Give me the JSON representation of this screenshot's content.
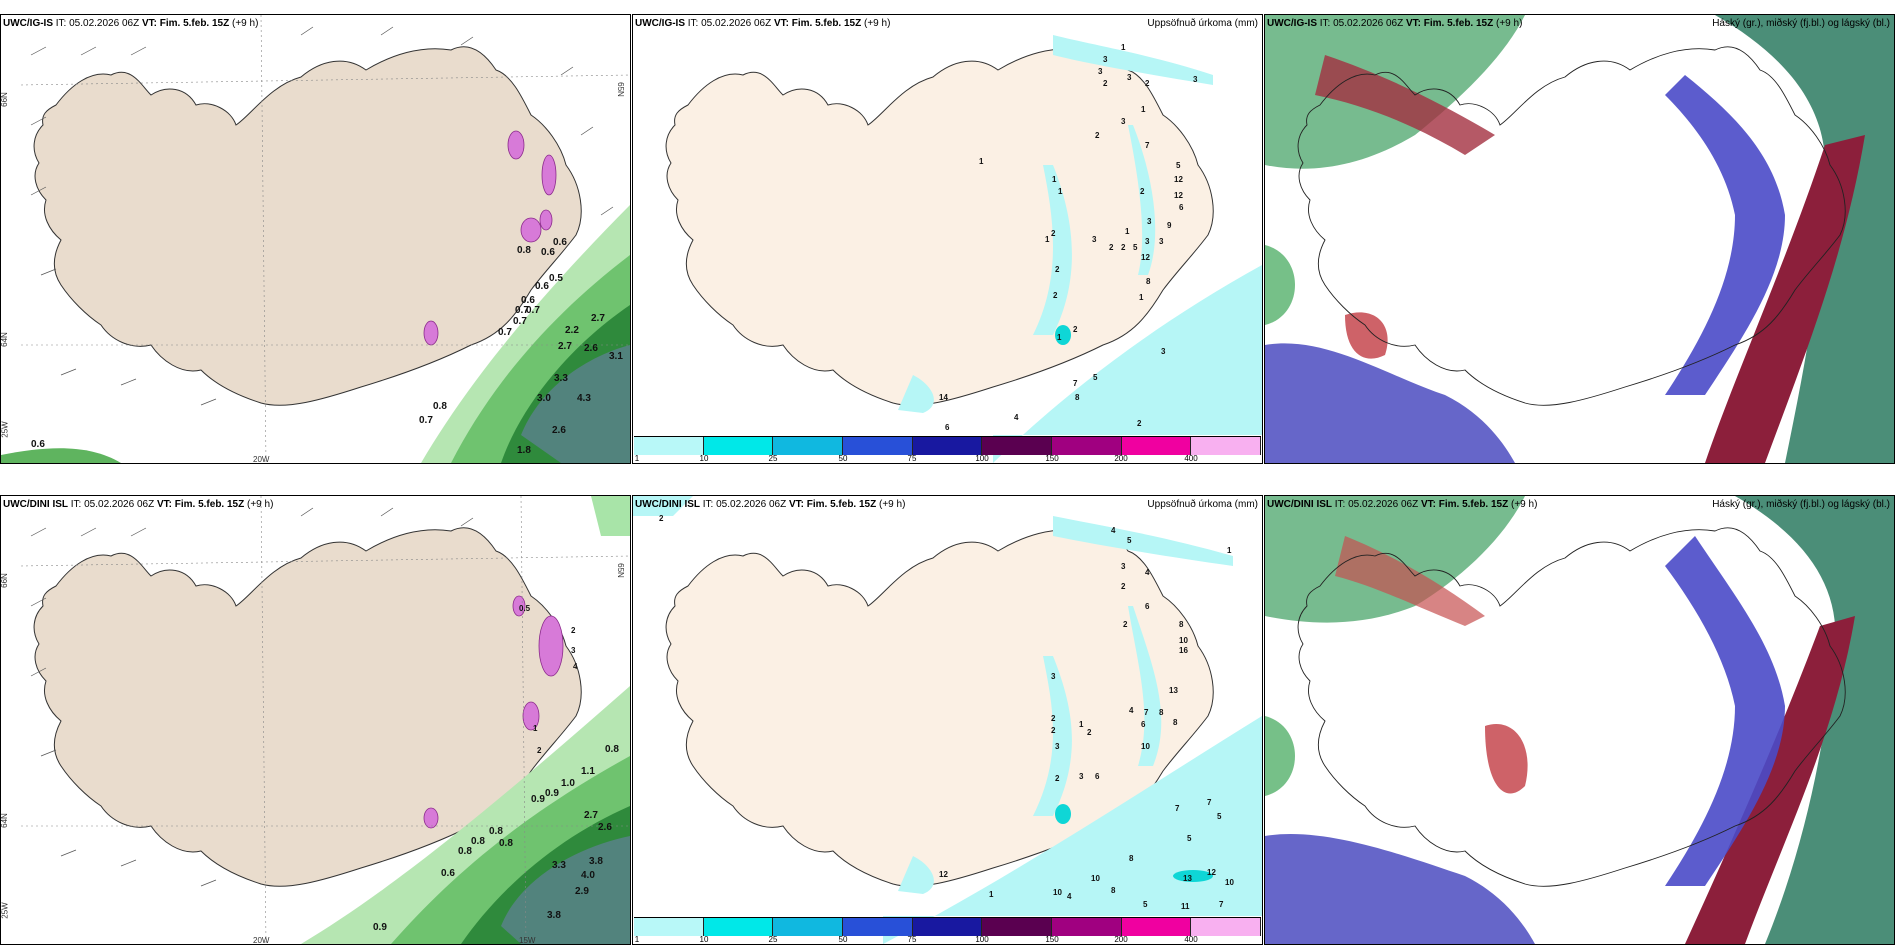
{
  "colors": {
    "land": "#f6eadf",
    "land_tan": "#e8d8c8",
    "coast": "#333333",
    "precip_light": "#b0f4f4",
    "green_light": "#a8e4a8",
    "green_mid": "#4fb04f",
    "green_dark": "#1d6b2a",
    "blue_cloud": "#4444cc",
    "red_cloud": "#9b2b3a"
  },
  "panels": [
    {
      "id": "top-left",
      "model": "UWC/IG-IS",
      "it_label": "IT: 05.02.2026 06Z",
      "vt_label": "VT: Fim. 5.feb. 15Z",
      "lead": "(+9 h)",
      "right_title": "",
      "lon_labels": [
        "20W"
      ],
      "lat_labels": [
        "66N",
        "64N",
        "25W"
      ],
      "lat_labels_right": [
        "65N"
      ],
      "values": [
        "0.6",
        "0.8",
        "0.6",
        "0.5",
        "0.6",
        "0.7",
        "0.7",
        "0.6",
        "0.7",
        "0.7",
        "2.7",
        "2.2",
        "2.7",
        "2.6",
        "3.1",
        "3.3",
        "4.3",
        "3.0",
        "0.8",
        "0.7",
        "2.6",
        "1.8",
        "0.6"
      ]
    },
    {
      "id": "top-center",
      "model": "UWC/IG-IS",
      "it_label": "IT: 05.02.2026 06Z",
      "vt_label": "VT: Fim. 5.feb. 15Z",
      "lead": "(+9 h)",
      "right_title": "Uppsöfnuð úrkoma (mm)",
      "values": [
        "1",
        "3",
        "3",
        "3",
        "3",
        "2",
        "2",
        "1",
        "3",
        "7",
        "2",
        "5",
        "12",
        "12",
        "1",
        "2",
        "6",
        "1",
        "1",
        "3",
        "9",
        "1",
        "3",
        "3",
        "5",
        "1",
        "2",
        "2",
        "3",
        "2",
        "2",
        "12",
        "8",
        "2",
        "1",
        "3",
        "1",
        "2",
        "5",
        "7",
        "8",
        "14",
        "4",
        "2",
        "6"
      ]
    },
    {
      "id": "top-right",
      "model": "UWC/IG-IS",
      "it_label": "IT: 05.02.2026 06Z",
      "vt_label": "VT: Fim. 5.feb. 15Z",
      "lead": "(+9 h)",
      "right_title": "Háský (gr.), miðský (fj.bl.) og lágský (bl.)"
    },
    {
      "id": "bottom-left",
      "model": "UWC/DINI ISL",
      "it_label": "IT: 05.02.2026 06Z",
      "vt_label": "VT: Fim. 5.feb. 15Z",
      "lead": "(+9 h)",
      "right_title": "",
      "lon_labels": [
        "20W",
        "15W"
      ],
      "lat_labels": [
        "66N",
        "64N",
        "25W"
      ],
      "lat_labels_right": [
        "65N"
      ],
      "values": [
        "0.5",
        "2",
        "3",
        "4",
        "1",
        "2",
        "1.1",
        "1.0",
        "0.9",
        "0.9",
        "0.8",
        "0.8",
        "2.7",
        "2.6",
        "0.8",
        "0.8",
        "0.8",
        "3.3",
        "3.8",
        "4.0",
        "2.9",
        "0.6",
        "3.8",
        "0.9"
      ]
    },
    {
      "id": "bottom-center",
      "model": "UWC/DINI ISL",
      "it_label": "IT: 05.02.2026 06Z",
      "vt_label": "VT: Fim. 5.feb. 15Z",
      "lead": "(+9 h)",
      "right_title": "Uppsöfnuð úrkoma (mm)",
      "values": [
        "2",
        "4",
        "5",
        "1",
        "3",
        "2",
        "4",
        "6",
        "2",
        "8",
        "10",
        "16",
        "13",
        "3",
        "2",
        "4",
        "7",
        "8",
        "6",
        "8",
        "2",
        "1",
        "2",
        "3",
        "10",
        "2",
        "3",
        "6",
        "7",
        "7",
        "5",
        "5",
        "13",
        "12",
        "10",
        "8",
        "10",
        "8",
        "5",
        "7",
        "4",
        "12",
        "1",
        "10",
        "11"
      ]
    },
    {
      "id": "bottom-right",
      "model": "UWC/DINI ISL",
      "it_label": "IT: 05.02.2026 06Z",
      "vt_label": "VT: Fim. 5.feb. 15Z",
      "lead": "(+9 h)",
      "right_title": "Háský (gr.), miðský (fj.bl.) og lágský (bl.)"
    }
  ],
  "colorbar": {
    "labels": [
      "1",
      "10",
      "25",
      "50",
      "75",
      "100",
      "150",
      "200",
      "400"
    ],
    "colors": [
      "#b8f8f8",
      "#00e8e8",
      "#10b8e0",
      "#2850d8",
      "#1818a0",
      "#5a0050",
      "#a00080",
      "#f000a0",
      "#f8b0f0"
    ]
  }
}
